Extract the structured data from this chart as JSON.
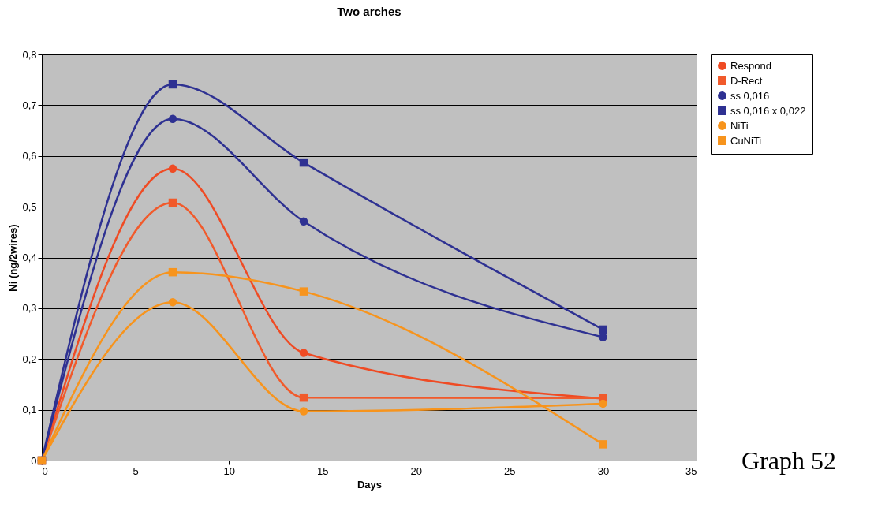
{
  "chart_data": {
    "type": "line",
    "title": "Two arches",
    "xlabel": "Days",
    "ylabel": "Ni (ng/2wires)",
    "x": [
      0,
      7,
      14,
      30
    ],
    "series": [
      {
        "name": "Respond",
        "color": "#ef4b24",
        "marker": "circle",
        "values": [
          0,
          0.575,
          0.212,
          0.122
        ]
      },
      {
        "name": "D-Rect",
        "color": "#f15a2b",
        "marker": "square",
        "values": [
          0,
          0.508,
          0.124,
          0.123
        ]
      },
      {
        "name": "ss 0,016",
        "color": "#2e3192",
        "marker": "circle",
        "values": [
          0,
          0.673,
          0.471,
          0.243
        ]
      },
      {
        "name": "ss 0,016 x 0,022",
        "color": "#2e3192",
        "marker": "square",
        "values": [
          0,
          0.741,
          0.587,
          0.258
        ]
      },
      {
        "name": "NiTi",
        "color": "#f7941d",
        "marker": "circle",
        "values": [
          0,
          0.312,
          0.097,
          0.112
        ]
      },
      {
        "name": "CuNiTi",
        "color": "#f7941d",
        "marker": "square",
        "values": [
          0,
          0.371,
          0.333,
          0.032
        ]
      }
    ],
    "xlim": [
      0,
      35
    ],
    "xticks": [
      0,
      5,
      10,
      15,
      20,
      25,
      30,
      35
    ],
    "ylim": [
      0,
      0.8
    ],
    "yticks": [
      {
        "value": 0,
        "label": "0"
      },
      {
        "value": 0.1,
        "label": "0,1"
      },
      {
        "value": 0.2,
        "label": "0,2"
      },
      {
        "value": 0.3,
        "label": "0,3"
      },
      {
        "value": 0.4,
        "label": "0,4"
      },
      {
        "value": 0.5,
        "label": "0,5"
      },
      {
        "value": 0.6,
        "label": "0,6"
      },
      {
        "value": 0.7,
        "label": "0,7"
      },
      {
        "value": 0.8,
        "label": "0,8"
      }
    ],
    "grid": "y",
    "legend": "right",
    "line_style": "solid",
    "annotations": [
      "Graph 52"
    ]
  }
}
